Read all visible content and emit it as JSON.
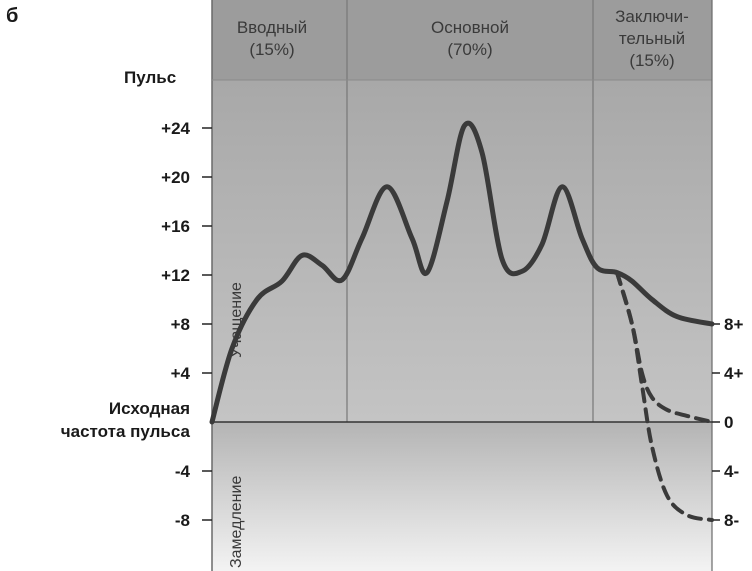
{
  "panel_label": "б",
  "chart_data": {
    "type": "line",
    "ylabel": "Пульс",
    "baseline_label": [
      "Исходная",
      "частота пульса"
    ],
    "region_labels": {
      "up": "Учащение",
      "down": "Замедление"
    },
    "phases": [
      {
        "name": [
          "Вводный",
          "(15%)"
        ],
        "share": 15
      },
      {
        "name": [
          "Основной",
          "(70%)"
        ],
        "share": 70
      },
      {
        "name": [
          "Заключи-",
          "тельный",
          "(15%)"
        ],
        "share": 15
      }
    ],
    "x_range": [
      0,
      100
    ],
    "ylim": [
      -10,
      29
    ],
    "y_ticks_left": [
      {
        "value": 24,
        "label": "+24"
      },
      {
        "value": 20,
        "label": "+20"
      },
      {
        "value": 16,
        "label": "+16"
      },
      {
        "value": 12,
        "label": "+12"
      },
      {
        "value": 8,
        "label": "+8"
      },
      {
        "value": 4,
        "label": "+4"
      },
      {
        "value": -4,
        "label": "-4"
      },
      {
        "value": -8,
        "label": "-8"
      }
    ],
    "y_ticks_right": [
      {
        "value": 8,
        "label": "8+"
      },
      {
        "value": 4,
        "label": "4+"
      },
      {
        "value": 0,
        "label": "0"
      },
      {
        "value": -4,
        "label": "4-"
      },
      {
        "value": -8,
        "label": "8-"
      }
    ],
    "series": [
      {
        "style": "solid",
        "points": [
          [
            0,
            0
          ],
          [
            4,
            6
          ],
          [
            9,
            10
          ],
          [
            14,
            11.5
          ],
          [
            18,
            13.6
          ],
          [
            22,
            12.8
          ],
          [
            26,
            11.6
          ],
          [
            30,
            15
          ],
          [
            35,
            19.2
          ],
          [
            40,
            15
          ],
          [
            43,
            12.2
          ],
          [
            47,
            18
          ],
          [
            50.5,
            24.2
          ],
          [
            54,
            22
          ],
          [
            58,
            13.3
          ],
          [
            62,
            12.3
          ],
          [
            66,
            14.5
          ],
          [
            70,
            19.2
          ],
          [
            74,
            15
          ],
          [
            77,
            12.6
          ],
          [
            81,
            12.2
          ],
          [
            84,
            11.5
          ],
          [
            88,
            10
          ],
          [
            93,
            8.6
          ],
          [
            100,
            8
          ]
        ]
      },
      {
        "style": "dashed",
        "points": [
          [
            81,
            12.2
          ],
          [
            84,
            8
          ],
          [
            86,
            4
          ],
          [
            88,
            2
          ],
          [
            91,
            1
          ],
          [
            95,
            0.5
          ],
          [
            100,
            0
          ]
        ]
      },
      {
        "style": "dashed",
        "points": [
          [
            81,
            12.2
          ],
          [
            84,
            8
          ],
          [
            86,
            3
          ],
          [
            88,
            -2
          ],
          [
            91,
            -6
          ],
          [
            95,
            -7.6
          ],
          [
            100,
            -8
          ]
        ]
      }
    ]
  }
}
